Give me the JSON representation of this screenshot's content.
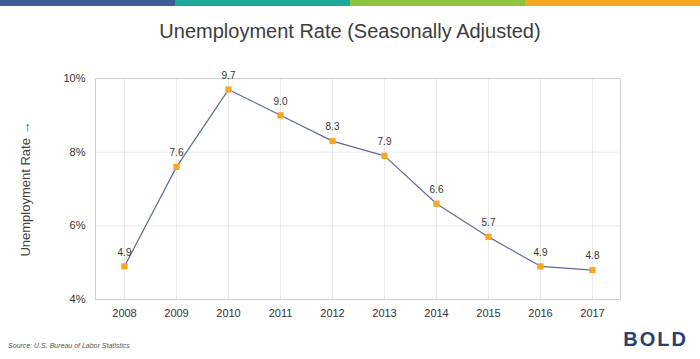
{
  "chart_data": {
    "type": "line",
    "title": "Unemployment Rate (Seasonally Adjusted)",
    "y_label": "Unemployment Rate",
    "source": "Source: U.S. Bureau of Labor Statistics",
    "logo": "BOLD",
    "categories": [
      "2008",
      "2009",
      "2010",
      "2011",
      "2012",
      "2013",
      "2014",
      "2015",
      "2016",
      "2017"
    ],
    "values": [
      4.9,
      7.6,
      9.7,
      9.0,
      8.3,
      7.9,
      6.6,
      5.7,
      4.9,
      4.8
    ],
    "value_labels": [
      "4.9",
      "7.6",
      "9.7",
      "9.0",
      "8.3",
      "7.9",
      "6.6",
      "5.7",
      "4.9",
      "4.8"
    ],
    "color": "#5b6b9c",
    "marker": "square",
    "marker_color": "#f5a623",
    "ylim": [
      4,
      10
    ],
    "yticks": [
      {
        "value": 4,
        "label": "4%"
      },
      {
        "value": 6,
        "label": "6%"
      },
      {
        "value": 8,
        "label": "8%"
      },
      {
        "value": 10,
        "label": "10%"
      }
    ],
    "grid": true,
    "data_labels": true
  }
}
